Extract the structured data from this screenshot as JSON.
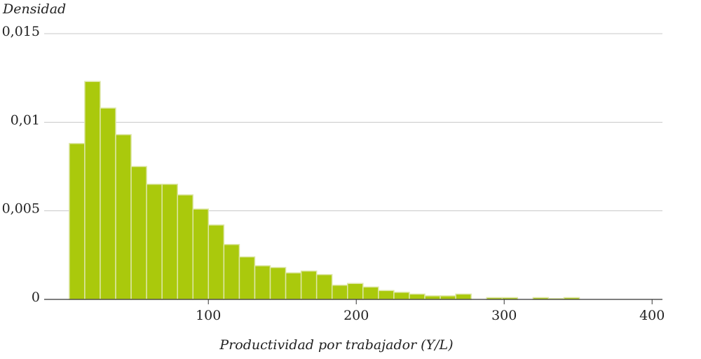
{
  "chart_data": {
    "type": "histogram",
    "y_label": "Densidad",
    "x_label": "Productividad por trabajador (Y/L)",
    "bins": [
      6,
      16.45,
      26.9,
      37.35,
      47.8,
      58.25,
      68.7,
      79.15,
      89.6,
      100.05,
      110.5,
      120.95,
      131.4,
      141.85,
      152.3,
      162.75,
      173.2,
      183.65,
      194.1,
      204.55,
      215,
      225.45,
      235.9,
      246.35,
      256.8,
      267.25,
      277.7,
      288.15,
      298.6,
      309.05,
      319.5,
      329.95,
      340.4,
      350.85
    ],
    "values": [
      0.0088,
      0.0123,
      0.0108,
      0.0093,
      0.0075,
      0.0065,
      0.0065,
      0.0059,
      0.0051,
      0.0042,
      0.0031,
      0.0024,
      0.0019,
      0.0018,
      0.0015,
      0.0016,
      0.0014,
      0.0008,
      0.0009,
      0.0007,
      0.0005,
      0.0004,
      0.0003,
      0.0002,
      0.0002,
      0.0003,
      0,
      0.0001,
      0.0001,
      0,
      0.0001,
      5e-05,
      0.0001
    ],
    "color": "#aac90c",
    "xlim": [
      -11,
      407
    ],
    "xticks": [
      100,
      200,
      300,
      400
    ],
    "ylim": [
      0,
      0.015
    ],
    "yticks": [
      0,
      {
        "value": 0.005,
        "label": "0,005"
      },
      {
        "value": 0.01,
        "label": "0,01"
      },
      {
        "value": 0.015,
        "label": "0,015"
      }
    ],
    "grid": true
  }
}
